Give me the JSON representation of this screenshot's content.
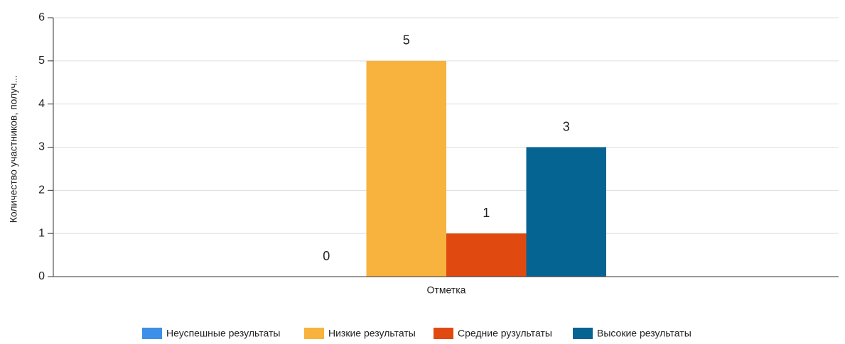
{
  "chart_data": {
    "type": "bar",
    "y_label": "Количество участников, получ...",
    "categories": [
      "Отметка"
    ],
    "series": [
      {
        "name": "Неуспешные результаты",
        "color": "#3d8fe8",
        "values": [
          0
        ]
      },
      {
        "name": "Низкие результаты",
        "color": "#f8b23e",
        "values": [
          5
        ]
      },
      {
        "name": "Средние рузультаты",
        "color": "#e04a10",
        "values": [
          1
        ]
      },
      {
        "name": "Высокие результаты",
        "color": "#066493",
        "values": [
          3
        ]
      }
    ],
    "ylim": [
      0,
      6
    ],
    "yticks": [
      0,
      1,
      2,
      3,
      4,
      5,
      6
    ],
    "grid": true,
    "legend": "bottom"
  }
}
